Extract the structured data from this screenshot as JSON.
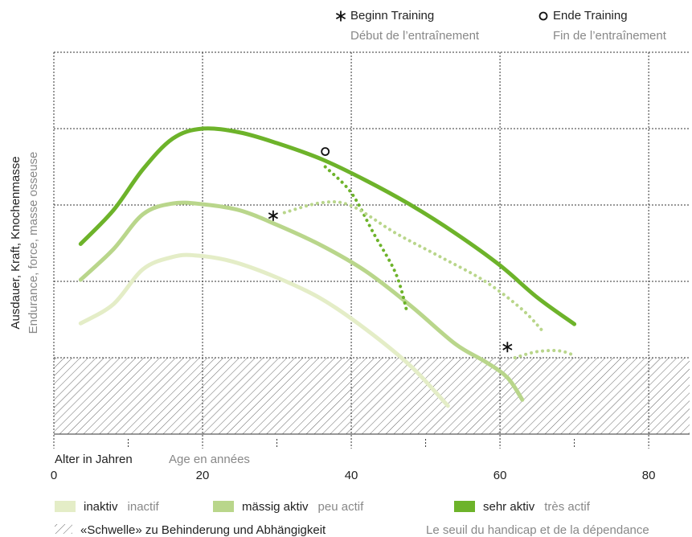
{
  "chart_data": {
    "type": "line",
    "ylabel": "Ausdauer, Kraft, Knochenmasse",
    "ylabel_fr": "Endurance, force, masse osseuse",
    "xlabel": "Alter in Jahren",
    "xlabel_fr": "Age en années",
    "xlim": [
      0,
      85.5
    ],
    "xticks": [
      0,
      20,
      40,
      60,
      80
    ],
    "xminor": [
      10,
      30,
      50,
      70
    ],
    "ylim": [
      0,
      5
    ],
    "yticks": [
      1,
      2,
      3,
      4,
      5
    ],
    "ytick_labels": false,
    "grid": true,
    "threshold": 1,
    "threshold_label": "«Schwelle» zu Behinderung und Abhängigkeit",
    "threshold_label_fr": "Le seuil du handicap et de la dépendance",
    "series": [
      {
        "name": "inaktiv",
        "name_fr": "inactif",
        "color": "#e4edc7",
        "x": [
          3.6,
          8,
          12,
          16,
          19,
          24,
          30,
          36,
          42,
          48,
          53
        ],
        "values": [
          1.45,
          1.7,
          2.16,
          2.32,
          2.34,
          2.26,
          2.05,
          1.77,
          1.37,
          0.89,
          0.37
        ]
      },
      {
        "name": "mässig aktiv",
        "name_fr": "peu actif",
        "color": "#b9d68b",
        "x": [
          3.6,
          8,
          12,
          16,
          20,
          25,
          30,
          36,
          42,
          48,
          54,
          58,
          61,
          63
        ],
        "values": [
          2.02,
          2.42,
          2.88,
          3.02,
          3.01,
          2.93,
          2.74,
          2.47,
          2.13,
          1.68,
          1.18,
          0.95,
          0.74,
          0.45
        ]
      },
      {
        "name": "sehr aktiv",
        "name_fr": "très actif",
        "color": "#6db32a",
        "x": [
          3.6,
          8,
          12,
          16,
          20,
          25,
          30,
          36,
          42,
          48,
          54,
          60,
          65,
          70
        ],
        "values": [
          2.49,
          2.93,
          3.47,
          3.87,
          4.0,
          3.95,
          3.81,
          3.6,
          3.32,
          3.0,
          2.63,
          2.21,
          1.79,
          1.44
        ]
      }
    ],
    "training_curves": [
      {
        "color": "#6db32a",
        "x": [
          36.5,
          40,
          43,
          46,
          47.5
        ],
        "values": [
          3.5,
          3.16,
          2.63,
          2.1,
          1.6
        ]
      },
      {
        "color": "#b9d68b",
        "x": [
          31,
          36,
          40,
          46,
          52,
          58,
          63,
          66
        ],
        "values": [
          2.9,
          3.03,
          2.99,
          2.63,
          2.32,
          2.0,
          1.63,
          1.32
        ]
      },
      {
        "color": "#b9d68b",
        "x": [
          62,
          65,
          68,
          70
        ],
        "values": [
          1.0,
          1.08,
          1.09,
          1.03
        ]
      }
    ],
    "markers": [
      {
        "symbol": "star",
        "x": 29.5,
        "y": 2.86
      },
      {
        "symbol": "circle",
        "x": 36.5,
        "y": 3.7
      },
      {
        "symbol": "star",
        "x": 61,
        "y": 1.14
      }
    ],
    "legend_markers": [
      {
        "symbol": "star",
        "label": "Beginn Training",
        "label_fr": "Début de l’entraînement"
      },
      {
        "symbol": "circle",
        "label": "Ende Training",
        "label_fr": "Fin de l’entraînement"
      }
    ]
  }
}
